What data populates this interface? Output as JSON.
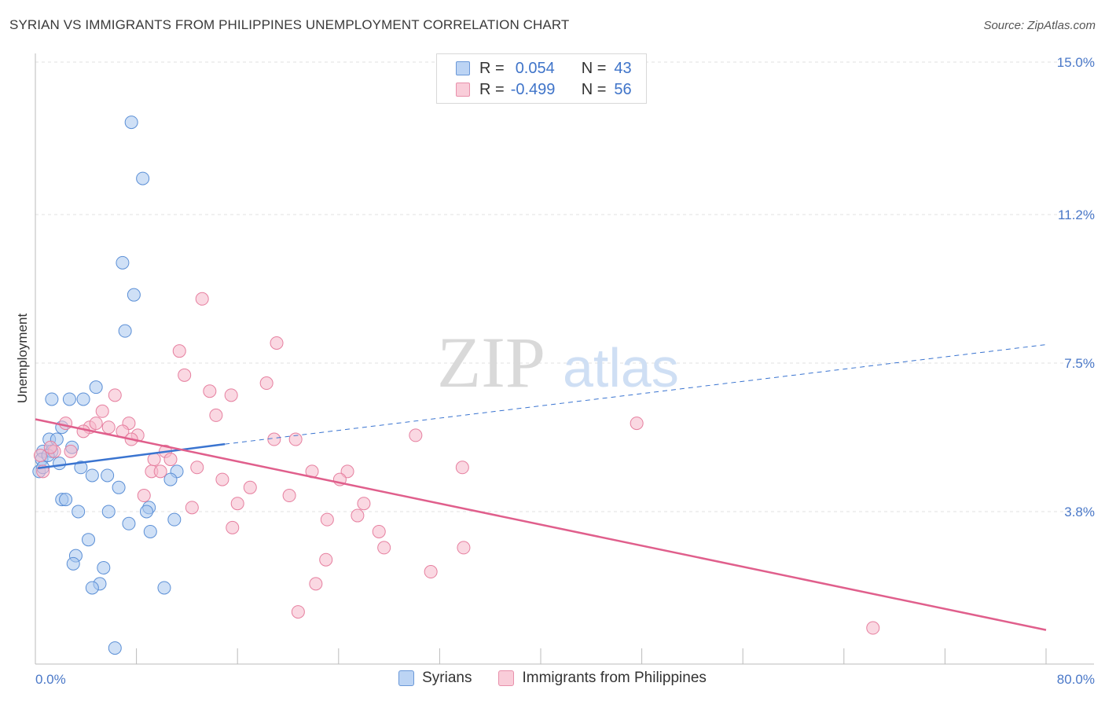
{
  "header": {
    "title": "SYRIAN VS IMMIGRANTS FROM PHILIPPINES UNEMPLOYMENT CORRELATION CHART",
    "source": "Source: ZipAtlas.com"
  },
  "watermark": {
    "zip": "ZIP",
    "atlas": "atlas"
  },
  "legend": {
    "rows": [
      {
        "r_label": "R =",
        "r_value": "0.054",
        "n_label": "N =",
        "n_value": "43",
        "color": "#a8c6ef"
      },
      {
        "r_label": "R =",
        "r_value": "-0.499",
        "n_label": "N =",
        "n_value": "56",
        "color": "#f5b8cb"
      }
    ]
  },
  "chart_data": {
    "type": "scatter",
    "title": "SYRIAN VS IMMIGRANTS FROM PHILIPPINES UNEMPLOYMENT CORRELATION CHART",
    "xlabel": "",
    "ylabel": "Unemployment",
    "xlim": [
      0,
      80
    ],
    "ylim": [
      0,
      15.0
    ],
    "x_tick_labels": [
      "0.0%",
      "80.0%"
    ],
    "y_ticks": [
      3.8,
      7.5,
      11.2,
      15.0
    ],
    "y_tick_labels": [
      "3.8%",
      "7.5%",
      "11.2%",
      "15.0%"
    ],
    "grid": true,
    "legend_position": "bottom",
    "series": [
      {
        "name": "Syrians",
        "color": "#a8c6ef",
        "stroke": "#5b8fd6",
        "line_color": "#3a74d0",
        "trend": {
          "x1": 0.2,
          "y1": 4.88,
          "x2": 15,
          "y2": 5.48,
          "dash_to_x": 80,
          "dash_to_y": 7.96
        },
        "points": [
          [
            7.6,
            13.5
          ],
          [
            8.5,
            12.1
          ],
          [
            6.9,
            10.0
          ],
          [
            7.8,
            9.2
          ],
          [
            7.1,
            8.3
          ],
          [
            4.8,
            6.9
          ],
          [
            1.3,
            6.6
          ],
          [
            2.7,
            6.6
          ],
          [
            3.8,
            6.6
          ],
          [
            2.1,
            5.9
          ],
          [
            1.1,
            5.6
          ],
          [
            1.7,
            5.6
          ],
          [
            2.9,
            5.4
          ],
          [
            0.6,
            5.3
          ],
          [
            1.3,
            5.3
          ],
          [
            0.5,
            5.1
          ],
          [
            1.0,
            5.2
          ],
          [
            1.9,
            5.0
          ],
          [
            0.3,
            4.8
          ],
          [
            0.6,
            4.9
          ],
          [
            3.6,
            4.9
          ],
          [
            4.5,
            4.7
          ],
          [
            5.7,
            4.7
          ],
          [
            11.2,
            4.8
          ],
          [
            10.7,
            4.6
          ],
          [
            6.6,
            4.4
          ],
          [
            2.1,
            4.1
          ],
          [
            2.4,
            4.1
          ],
          [
            9.0,
            3.9
          ],
          [
            3.4,
            3.8
          ],
          [
            5.8,
            3.8
          ],
          [
            8.8,
            3.8
          ],
          [
            11.0,
            3.6
          ],
          [
            7.4,
            3.5
          ],
          [
            9.1,
            3.3
          ],
          [
            4.2,
            3.1
          ],
          [
            3.2,
            2.7
          ],
          [
            3.0,
            2.5
          ],
          [
            5.4,
            2.4
          ],
          [
            5.1,
            2.0
          ],
          [
            4.5,
            1.9
          ],
          [
            10.2,
            1.9
          ],
          [
            6.3,
            0.4
          ]
        ]
      },
      {
        "name": "Immigrants from Philippines",
        "color": "#f5b8cb",
        "stroke": "#e67f9f",
        "line_color": "#e05f8c",
        "trend": {
          "x1": 0,
          "y1": 6.1,
          "x2": 80,
          "y2": 0.85
        },
        "points": [
          [
            13.2,
            9.1
          ],
          [
            19.1,
            8.0
          ],
          [
            11.4,
            7.8
          ],
          [
            11.8,
            7.2
          ],
          [
            18.3,
            7.0
          ],
          [
            13.8,
            6.8
          ],
          [
            15.5,
            6.7
          ],
          [
            6.3,
            6.7
          ],
          [
            14.3,
            6.2
          ],
          [
            5.3,
            6.3
          ],
          [
            2.4,
            6.0
          ],
          [
            4.3,
            5.9
          ],
          [
            4.8,
            6.0
          ],
          [
            5.8,
            5.9
          ],
          [
            7.4,
            6.0
          ],
          [
            3.8,
            5.8
          ],
          [
            6.9,
            5.8
          ],
          [
            8.1,
            5.7
          ],
          [
            7.6,
            5.6
          ],
          [
            18.9,
            5.6
          ],
          [
            20.6,
            5.6
          ],
          [
            30.1,
            5.7
          ],
          [
            47.6,
            6.0
          ],
          [
            2.8,
            5.3
          ],
          [
            10.3,
            5.3
          ],
          [
            1.5,
            5.3
          ],
          [
            10.7,
            5.1
          ],
          [
            12.8,
            4.9
          ],
          [
            33.8,
            4.9
          ],
          [
            9.2,
            4.8
          ],
          [
            9.9,
            4.8
          ],
          [
            21.9,
            4.8
          ],
          [
            24.7,
            4.8
          ],
          [
            24.1,
            4.6
          ],
          [
            14.8,
            4.6
          ],
          [
            17.0,
            4.4
          ],
          [
            8.6,
            4.2
          ],
          [
            20.1,
            4.2
          ],
          [
            26.0,
            4.0
          ],
          [
            16.0,
            4.0
          ],
          [
            12.4,
            3.9
          ],
          [
            25.5,
            3.7
          ],
          [
            23.1,
            3.6
          ],
          [
            15.6,
            3.4
          ],
          [
            27.2,
            3.3
          ],
          [
            27.6,
            2.9
          ],
          [
            33.9,
            2.9
          ],
          [
            23.0,
            2.6
          ],
          [
            31.3,
            2.3
          ],
          [
            22.2,
            2.0
          ],
          [
            0.4,
            5.2
          ],
          [
            1.2,
            5.4
          ],
          [
            9.4,
            5.1
          ],
          [
            20.8,
            1.3
          ],
          [
            66.3,
            0.9
          ],
          [
            0.6,
            4.8
          ]
        ]
      }
    ]
  }
}
